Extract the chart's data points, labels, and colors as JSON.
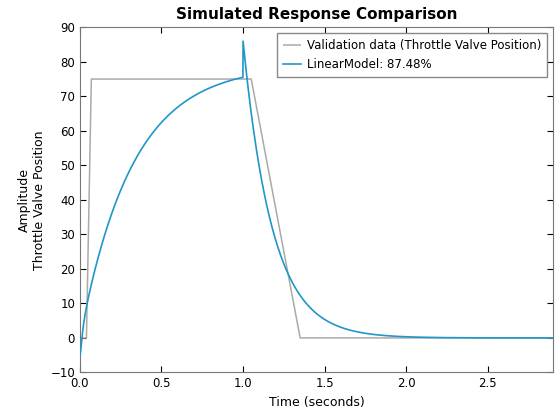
{
  "title": "Simulated Response Comparison",
  "xlabel": "Time (seconds)",
  "ylabel1": "Amplitude",
  "ylabel2": "Throttle Valve Position",
  "xlim": [
    0,
    2.9
  ],
  "ylim": [
    -10,
    90
  ],
  "xticks": [
    0,
    0.5,
    1.0,
    1.5,
    2.0,
    2.5
  ],
  "yticks": [
    -10,
    0,
    10,
    20,
    30,
    40,
    50,
    60,
    70,
    80,
    90
  ],
  "legend_labels": [
    "Validation data (Throttle Valve Position)",
    "LinearModel: 87.48%"
  ],
  "gray_color": "#aaaaaa",
  "blue_color": "#2196c8",
  "background_color": "#ffffff",
  "title_fontsize": 11,
  "label_fontsize": 9,
  "tick_fontsize": 8.5,
  "legend_fontsize": 8.5,
  "gray_steady": 75.0,
  "gray_rise_start": 0.04,
  "gray_rise_end": 0.07,
  "gray_fall_start": 1.05,
  "gray_fall_end": 1.35,
  "blue_tau_rise": 0.32,
  "blue_steady": 79.0,
  "blue_peak": 86.0,
  "blue_tau_fall": 0.18,
  "blue_spike_high": 4.0,
  "blue_spike_low": -5.0
}
